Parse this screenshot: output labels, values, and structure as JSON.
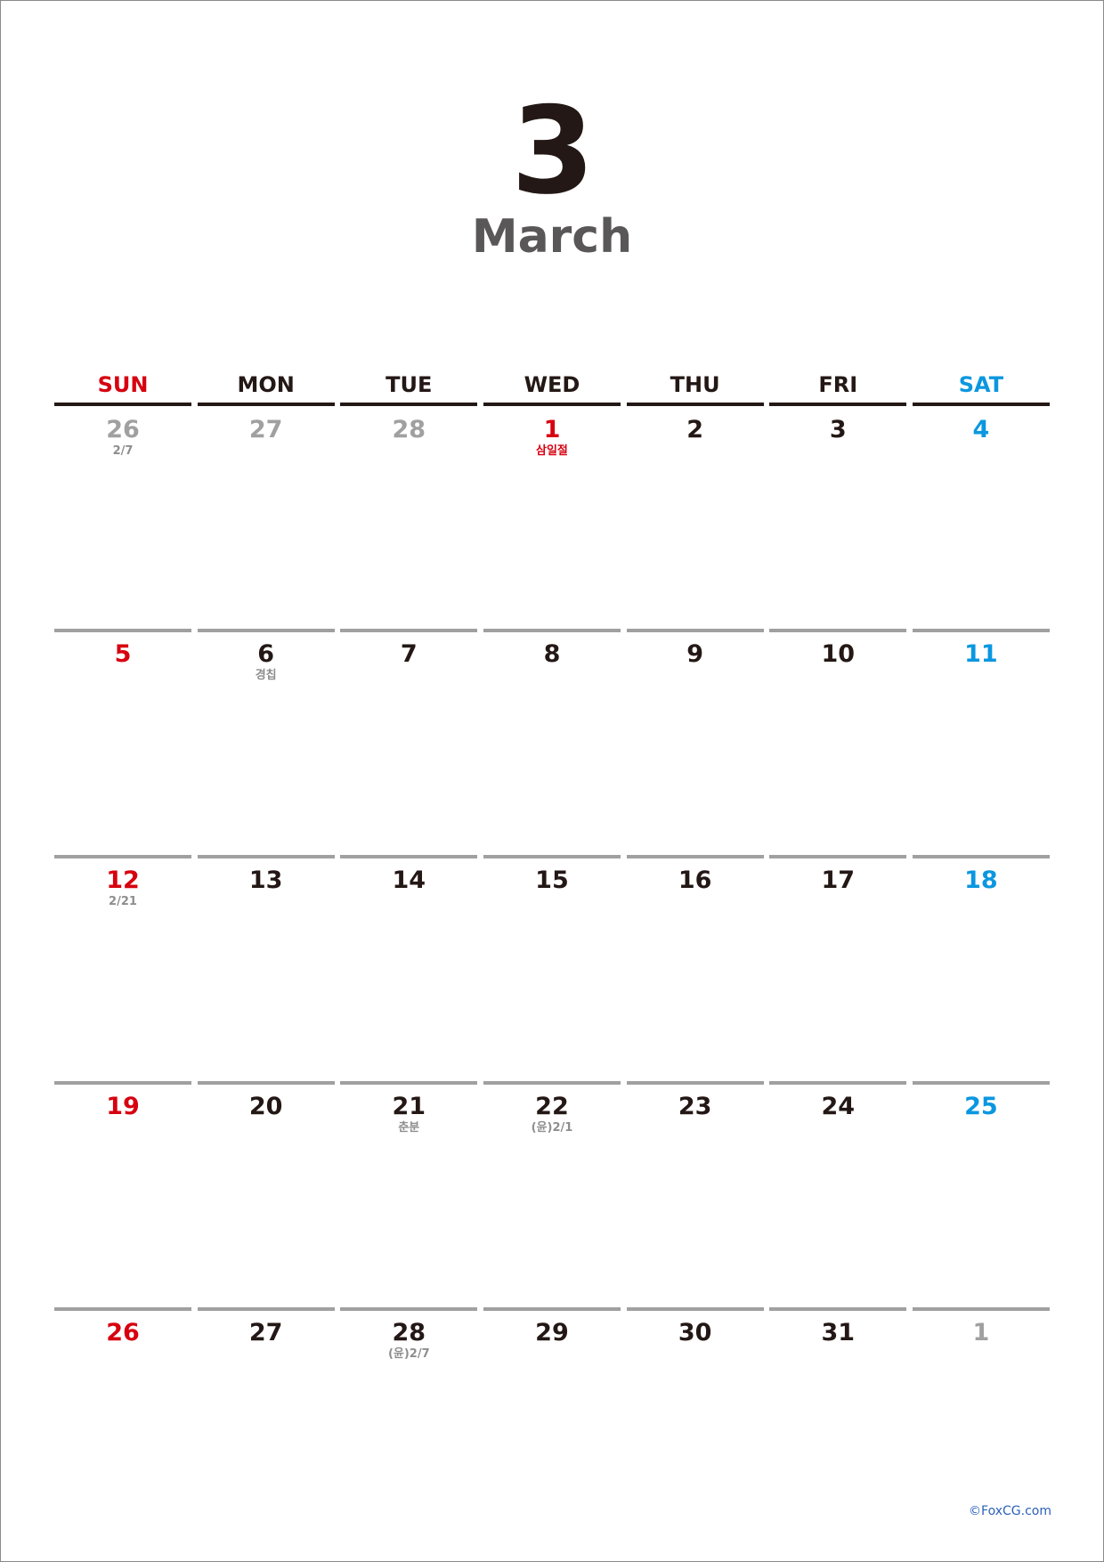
{
  "header": {
    "month_number": "3",
    "month_name": "March"
  },
  "weekdays": [
    {
      "label": "SUN",
      "kind": "sun"
    },
    {
      "label": "MON",
      "kind": "weekday"
    },
    {
      "label": "TUE",
      "kind": "weekday"
    },
    {
      "label": "WED",
      "kind": "weekday"
    },
    {
      "label": "THU",
      "kind": "weekday"
    },
    {
      "label": "FRI",
      "kind": "weekday"
    },
    {
      "label": "SAT",
      "kind": "sat"
    }
  ],
  "weeks": [
    [
      {
        "day": "26",
        "style": "muted",
        "note": "2/7"
      },
      {
        "day": "27",
        "style": "muted",
        "note": ""
      },
      {
        "day": "28",
        "style": "muted",
        "note": ""
      },
      {
        "day": "1",
        "style": "sun",
        "note": "삼일절",
        "note_style": "holiday"
      },
      {
        "day": "2",
        "style": "normal",
        "note": ""
      },
      {
        "day": "3",
        "style": "normal",
        "note": ""
      },
      {
        "day": "4",
        "style": "sat",
        "note": ""
      }
    ],
    [
      {
        "day": "5",
        "style": "sun",
        "note": ""
      },
      {
        "day": "6",
        "style": "normal",
        "note": "경칩"
      },
      {
        "day": "7",
        "style": "normal",
        "note": ""
      },
      {
        "day": "8",
        "style": "normal",
        "note": ""
      },
      {
        "day": "9",
        "style": "normal",
        "note": ""
      },
      {
        "day": "10",
        "style": "normal",
        "note": ""
      },
      {
        "day": "11",
        "style": "sat",
        "note": ""
      }
    ],
    [
      {
        "day": "12",
        "style": "sun",
        "note": "2/21"
      },
      {
        "day": "13",
        "style": "normal",
        "note": ""
      },
      {
        "day": "14",
        "style": "normal",
        "note": ""
      },
      {
        "day": "15",
        "style": "normal",
        "note": ""
      },
      {
        "day": "16",
        "style": "normal",
        "note": ""
      },
      {
        "day": "17",
        "style": "normal",
        "note": ""
      },
      {
        "day": "18",
        "style": "sat",
        "note": ""
      }
    ],
    [
      {
        "day": "19",
        "style": "sun",
        "note": ""
      },
      {
        "day": "20",
        "style": "normal",
        "note": ""
      },
      {
        "day": "21",
        "style": "normal",
        "note": "춘분"
      },
      {
        "day": "22",
        "style": "normal",
        "note": "(윤)2/1"
      },
      {
        "day": "23",
        "style": "normal",
        "note": ""
      },
      {
        "day": "24",
        "style": "normal",
        "note": ""
      },
      {
        "day": "25",
        "style": "sat",
        "note": ""
      }
    ],
    [
      {
        "day": "26",
        "style": "sun",
        "note": ""
      },
      {
        "day": "27",
        "style": "normal",
        "note": ""
      },
      {
        "day": "28",
        "style": "normal",
        "note": "(윤)2/7"
      },
      {
        "day": "29",
        "style": "normal",
        "note": ""
      },
      {
        "day": "30",
        "style": "normal",
        "note": ""
      },
      {
        "day": "31",
        "style": "normal",
        "note": ""
      },
      {
        "day": "1",
        "style": "muted",
        "note": ""
      }
    ]
  ],
  "footer": {
    "credit": "©FoxCG.com"
  },
  "colors": {
    "sunday": "#d7000f",
    "saturday": "#0b97e0",
    "text": "#231815",
    "muted": "#a0a0a0",
    "note": "#8e8e8e",
    "credit": "#2b62b8"
  }
}
